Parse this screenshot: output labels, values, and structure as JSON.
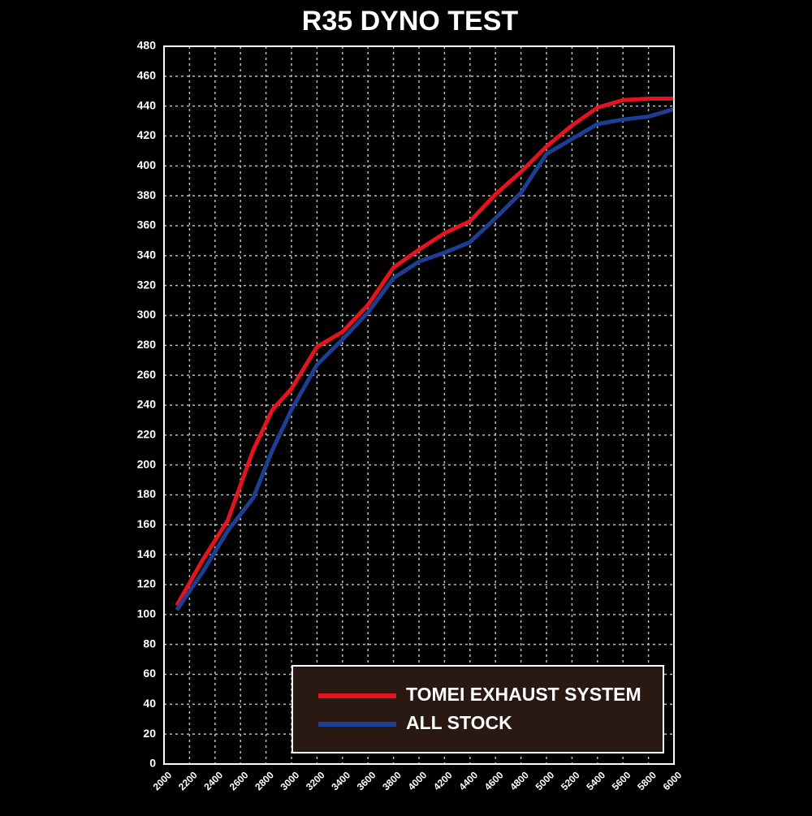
{
  "chart_data": {
    "type": "line",
    "title": "R35 DYNO TEST",
    "x": [
      2100,
      2300,
      2500,
      2700,
      2850,
      3000,
      3200,
      3400,
      3600,
      3800,
      4000,
      4200,
      4400,
      4600,
      4800,
      5000,
      5200,
      5400,
      5600,
      5800,
      6000
    ],
    "series": [
      {
        "name": "TOMEI EXHAUST SYSTEM",
        "color": "#e3141e",
        "values": [
          106,
          136,
          163,
          210,
          237,
          251,
          279,
          289,
          307,
          332,
          344,
          355,
          363,
          381,
          396,
          413,
          427,
          439,
          444,
          445,
          445
        ]
      },
      {
        "name": "ALL STOCK",
        "color": "#1c3f94",
        "values": [
          103,
          128,
          156,
          178,
          210,
          237,
          267,
          284,
          302,
          325,
          336,
          342,
          349,
          365,
          382,
          408,
          418,
          428,
          431,
          433,
          438
        ]
      }
    ],
    "xlim": [
      2000,
      6000
    ],
    "xticks": [
      2000,
      2200,
      2400,
      2600,
      2800,
      3000,
      3200,
      3400,
      3600,
      3800,
      4000,
      4200,
      4400,
      4600,
      4800,
      5000,
      5200,
      5400,
      5600,
      5800,
      6000
    ],
    "ylim": [
      0,
      480
    ],
    "yticks": [
      0,
      20,
      40,
      60,
      80,
      100,
      120,
      140,
      160,
      180,
      200,
      220,
      240,
      260,
      280,
      300,
      320,
      340,
      360,
      380,
      400,
      420,
      440,
      460,
      480
    ],
    "grid": true,
    "legend": "lower right"
  }
}
